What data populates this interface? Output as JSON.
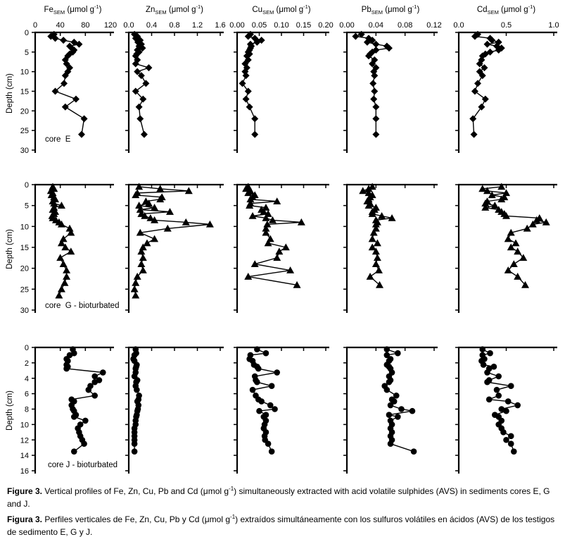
{
  "caption_en": {
    "bold": "Figure 3.",
    "pre": " Vertical profiles of Fe, Zn, Cu, Pb and Cd (μmol g",
    "sup": "-1",
    "post": ") simultaneously extracted with acid volatile sulphides (AVS) in sediments cores E, G and J."
  },
  "caption_es": {
    "bold": "Figura 3.",
    "pre": " Perfiles verticales de Fe, Zn, Cu, Pb y Cd (μmol g",
    "sup": "-1",
    "post": ") extraídos simultáneamente con los sulfuros volátiles en ácidos (AVS) de los testigos de sedimento E, G y J."
  },
  "chart_data": {
    "type": "line",
    "layout": "3 rows (cores E, G, J) x 5 columns (Fe, Zn, Cu, Pb, Cd); depth profiles, depth increases downward; only row 1 has x tick labels, only column 1 has y tick labels",
    "grid": false,
    "line_color": "#000000",
    "background": "#ffffff",
    "columns": [
      {
        "id": "Fe",
        "element": "Fe",
        "sub": "SEM",
        "mid": " (μmol g",
        "sup": "-1",
        "end": ")",
        "xlim": [
          0,
          120
        ],
        "tick_values": [
          0,
          40,
          80,
          120
        ],
        "tick_labels": [
          "0",
          "40",
          "80",
          "120"
        ]
      },
      {
        "id": "Zn",
        "element": "Zn",
        "sub": "SEM",
        "mid": " (μmol g",
        "sup": "-1",
        "end": ")",
        "xlim": [
          0,
          1.6
        ],
        "tick_values": [
          0,
          0.4,
          0.8,
          1.2,
          1.6
        ],
        "tick_labels": [
          "0.0",
          "0.4",
          "0.8",
          "1.2",
          "1.6"
        ]
      },
      {
        "id": "Cu",
        "element": "Cu",
        "sub": "SEM",
        "mid": " (μmol g",
        "sup": "-1",
        "end": ")",
        "xlim": [
          0,
          0.2
        ],
        "tick_values": [
          0,
          0.05,
          0.1,
          0.15,
          0.2
        ],
        "tick_labels": [
          "0.00",
          "0.05",
          "0.10",
          "0.15",
          "0.20"
        ]
      },
      {
        "id": "Pb",
        "element": "Pb",
        "sub": "SEM",
        "mid": " (μmol g",
        "sup": "-1",
        "end": ")",
        "xlim": [
          0,
          0.12
        ],
        "tick_values": [
          0,
          0.04,
          0.08,
          0.12
        ],
        "tick_labels": [
          "0.00",
          "0.04",
          "0.08",
          "0.12"
        ]
      },
      {
        "id": "Cd",
        "element": "Cd",
        "sub": "SEM",
        "mid": " (μmol g",
        "sup": "-1",
        "end": ")",
        "xlim": [
          0,
          1.0
        ],
        "tick_values": [
          0,
          0.5,
          1.0
        ],
        "tick_labels": [
          "0.0",
          "0.5",
          "1.0"
        ]
      }
    ],
    "rows": [
      {
        "id": "E",
        "core_label": "core  E",
        "marker": "diamond",
        "ylabel": "Depth (cm)",
        "ylim": [
          0,
          30
        ],
        "tick_values": [
          0,
          5,
          10,
          15,
          20,
          25,
          30
        ],
        "tick_labels": [
          "0",
          "5",
          "10",
          "15",
          "20",
          "25",
          "30"
        ]
      },
      {
        "id": "G",
        "core_label": "core  G - bioturbated",
        "marker": "triangle",
        "ylabel": "Depth (cm)",
        "ylim": [
          0,
          30
        ],
        "tick_values": [
          0,
          5,
          10,
          15,
          20,
          25,
          30
        ],
        "tick_labels": [
          "0",
          "5",
          "10",
          "15",
          "20",
          "25",
          "30"
        ]
      },
      {
        "id": "J",
        "core_label": "core J - bioturbated",
        "marker": "circle",
        "ylabel": "Depth (cm)",
        "ylim": [
          0,
          16
        ],
        "tick_values": [
          0,
          2,
          4,
          6,
          8,
          10,
          12,
          14,
          16
        ],
        "tick_labels": [
          "0",
          "2",
          "4",
          "6",
          "8",
          "10",
          "12",
          "14",
          "16"
        ]
      }
    ],
    "series": [
      {
        "row": 0,
        "col": 0,
        "depth": [
          0.5,
          1,
          1.5,
          2,
          2.5,
          3,
          3.5,
          4,
          4.5,
          5,
          5.5,
          6,
          7,
          8,
          9,
          10,
          11,
          13,
          15,
          17,
          19,
          22,
          26
        ],
        "values": [
          30,
          25,
          32,
          45,
          62,
          70,
          55,
          58,
          62,
          60,
          55,
          52,
          48,
          50,
          55,
          52,
          48,
          46,
          32,
          65,
          48,
          78,
          74
        ]
      },
      {
        "row": 0,
        "col": 1,
        "depth": [
          0.5,
          1,
          1.5,
          2,
          2.5,
          3,
          3.5,
          4,
          4.5,
          5,
          5.5,
          6,
          7,
          8,
          9,
          10,
          11,
          13,
          15,
          17,
          19,
          22,
          26
        ],
        "values": [
          0.1,
          0.15,
          0.12,
          0.2,
          0.16,
          0.22,
          0.18,
          0.24,
          0.15,
          0.18,
          0.14,
          0.12,
          0.15,
          0.12,
          0.35,
          0.15,
          0.22,
          0.3,
          0.12,
          0.25,
          0.18,
          0.2,
          0.27
        ]
      },
      {
        "row": 0,
        "col": 2,
        "depth": [
          0.5,
          1,
          1.5,
          2,
          2.5,
          3,
          3.5,
          4,
          4.5,
          5,
          5.5,
          6,
          7,
          8,
          9,
          10,
          11,
          13,
          15,
          17,
          19,
          22,
          26
        ],
        "values": [
          0.03,
          0.025,
          0.04,
          0.055,
          0.045,
          0.03,
          0.032,
          0.03,
          0.028,
          0.025,
          0.028,
          0.022,
          0.025,
          0.018,
          0.022,
          0.018,
          0.02,
          0.012,
          0.025,
          0.02,
          0.028,
          0.04,
          0.04
        ]
      },
      {
        "row": 0,
        "col": 3,
        "depth": [
          0.5,
          1,
          1.5,
          2,
          2.5,
          3,
          3.5,
          4,
          4.5,
          5,
          5.5,
          6,
          7,
          8,
          9,
          10,
          11,
          13,
          15,
          17,
          19,
          22,
          26
        ],
        "values": [
          0.02,
          0.012,
          0.03,
          0.035,
          0.028,
          0.04,
          0.055,
          0.058,
          0.04,
          0.035,
          0.032,
          0.03,
          0.038,
          0.035,
          0.04,
          0.037,
          0.038,
          0.036,
          0.038,
          0.037,
          0.04,
          0.04,
          0.04
        ]
      },
      {
        "row": 0,
        "col": 4,
        "depth": [
          0.5,
          1,
          1.5,
          2,
          2.5,
          3,
          3.5,
          4,
          4.5,
          5,
          5.5,
          6,
          7,
          8,
          9,
          10,
          11,
          13,
          15,
          17,
          19,
          22,
          26
        ],
        "values": [
          0.2,
          0.17,
          0.33,
          0.35,
          0.42,
          0.3,
          0.4,
          0.45,
          0.42,
          0.33,
          0.28,
          0.25,
          0.24,
          0.22,
          0.27,
          0.22,
          0.25,
          0.2,
          0.17,
          0.28,
          0.24,
          0.15,
          0.16
        ]
      },
      {
        "row": 1,
        "col": 0,
        "depth": [
          0.5,
          1,
          1.5,
          2,
          2.5,
          3,
          3.5,
          4,
          4.5,
          5,
          5.5,
          6,
          6.5,
          7,
          7.5,
          8,
          8.5,
          9,
          9.5,
          10.5,
          11.5,
          13,
          14,
          15,
          16,
          17.5,
          19,
          20.5,
          22,
          23.5,
          25,
          26.5
        ],
        "values": [
          28,
          30,
          25,
          28,
          26,
          30,
          32,
          28,
          30,
          42,
          30,
          28,
          32,
          30,
          27,
          28,
          33,
          38,
          42,
          55,
          57,
          45,
          42,
          48,
          57,
          40,
          45,
          50,
          50,
          47,
          42,
          38
        ]
      },
      {
        "row": 1,
        "col": 1,
        "depth": [
          0.5,
          1,
          1.5,
          2,
          2.5,
          3,
          3.5,
          4,
          4.5,
          5,
          5.5,
          6,
          6.5,
          7,
          7.5,
          8,
          8.5,
          9,
          9.5,
          10.5,
          11.5,
          13,
          14,
          15,
          16,
          17.5,
          19,
          20.5,
          22,
          23.5,
          25,
          26.5
        ],
        "values": [
          0.18,
          0.55,
          1.05,
          0.15,
          0.12,
          0.58,
          0.55,
          0.3,
          0.35,
          0.18,
          0.45,
          0.2,
          0.72,
          0.22,
          0.28,
          0.38,
          0.45,
          1.0,
          1.42,
          0.68,
          0.2,
          0.45,
          0.32,
          0.25,
          0.22,
          0.25,
          0.22,
          0.25,
          0.15,
          0.12,
          0.1,
          0.12
        ]
      },
      {
        "row": 1,
        "col": 2,
        "depth": [
          0.5,
          1,
          1.5,
          2,
          2.5,
          3,
          3.5,
          4,
          4.5,
          5,
          5.5,
          6,
          6.5,
          7,
          7.5,
          8,
          8.5,
          9,
          9.5,
          10.5,
          11.5,
          13,
          14,
          15,
          16,
          17.5,
          19,
          20.5,
          22,
          24
        ],
        "values": [
          0.025,
          0.02,
          0.03,
          0.025,
          0.04,
          0.035,
          0.03,
          0.09,
          0.03,
          0.028,
          0.065,
          0.055,
          0.06,
          0.07,
          0.035,
          0.065,
          0.08,
          0.145,
          0.068,
          0.065,
          0.065,
          0.075,
          0.07,
          0.11,
          0.095,
          0.09,
          0.04,
          0.12,
          0.025,
          0.135
        ]
      },
      {
        "row": 1,
        "col": 3,
        "depth": [
          0.5,
          1,
          1.5,
          2,
          2.5,
          3,
          3.5,
          4,
          4.5,
          5,
          5.5,
          6,
          6.5,
          7,
          7.5,
          8,
          8.5,
          9,
          9.5,
          10.5,
          11.5,
          13,
          14,
          15,
          16,
          17.5,
          19,
          20.5,
          22,
          24
        ],
        "values": [
          0.035,
          0.03,
          0.022,
          0.03,
          0.035,
          0.032,
          0.03,
          0.028,
          0.032,
          0.03,
          0.04,
          0.038,
          0.035,
          0.035,
          0.048,
          0.062,
          0.04,
          0.042,
          0.04,
          0.04,
          0.037,
          0.035,
          0.042,
          0.035,
          0.04,
          0.042,
          0.04,
          0.044,
          0.032,
          0.045
        ]
      },
      {
        "row": 1,
        "col": 4,
        "depth": [
          0.5,
          1,
          1.5,
          2,
          2.5,
          3,
          3.5,
          4,
          4.5,
          5,
          5.5,
          6,
          6.5,
          7,
          7.5,
          8,
          8.5,
          9,
          9.5,
          10.5,
          11.5,
          13,
          14,
          15,
          16,
          17.5,
          19,
          20.5,
          22,
          24
        ],
        "values": [
          0.45,
          0.25,
          0.3,
          0.5,
          0.35,
          0.48,
          0.45,
          0.3,
          0.28,
          0.38,
          0.28,
          0.42,
          0.45,
          0.48,
          0.5,
          0.85,
          0.82,
          0.92,
          0.78,
          0.72,
          0.55,
          0.52,
          0.6,
          0.55,
          0.62,
          0.68,
          0.58,
          0.52,
          0.62,
          0.7
        ]
      },
      {
        "row": 2,
        "col": 0,
        "depth": [
          0.25,
          0.75,
          1,
          1.5,
          1.75,
          2.25,
          2.5,
          2.75,
          3.25,
          3.75,
          4.25,
          4.5,
          5,
          5.5,
          6.25,
          6.75,
          7,
          7.5,
          8,
          8.25,
          8.75,
          9,
          9.5,
          10,
          10.5,
          11,
          11.5,
          12,
          12.5,
          13.5
        ],
        "values": [
          60,
          62,
          55,
          50,
          52,
          50,
          52,
          50,
          108,
          95,
          102,
          95,
          88,
          85,
          95,
          58,
          62,
          58,
          60,
          62,
          65,
          62,
          80,
          72,
          68,
          70,
          72,
          75,
          78,
          62
        ]
      },
      {
        "row": 2,
        "col": 1,
        "depth": [
          0.25,
          0.75,
          1,
          1.5,
          1.75,
          2.25,
          2.5,
          2.75,
          3.25,
          3.75,
          4.25,
          4.5,
          5,
          5.5,
          6.25,
          6.75,
          7,
          7.5,
          8,
          8.25,
          8.75,
          9,
          9.5,
          10,
          10.5,
          11,
          11.5,
          12,
          12.5,
          13.5
        ],
        "values": [
          0.12,
          0.13,
          0.1,
          0.08,
          0.1,
          0.14,
          0.13,
          0.12,
          0.12,
          0.1,
          0.15,
          0.13,
          0.12,
          0.14,
          0.18,
          0.17,
          0.15,
          0.17,
          0.16,
          0.15,
          0.14,
          0.13,
          0.12,
          0.12,
          0.1,
          0.1,
          0.1,
          0.1,
          0.1,
          0.1
        ]
      },
      {
        "row": 2,
        "col": 2,
        "depth": [
          0.25,
          0.75,
          1,
          1.5,
          1.75,
          2.25,
          2.5,
          2.75,
          3.25,
          3.75,
          4.25,
          4.5,
          5,
          5.5,
          6.25,
          6.75,
          7,
          7.5,
          8,
          8.25,
          8.75,
          9,
          9.5,
          10,
          10.5,
          11,
          11.5,
          12,
          12.5,
          13.5
        ],
        "values": [
          0.045,
          0.065,
          0.03,
          0.028,
          0.035,
          0.038,
          0.045,
          0.048,
          0.09,
          0.04,
          0.042,
          0.045,
          0.078,
          0.035,
          0.042,
          0.048,
          0.055,
          0.075,
          0.085,
          0.05,
          0.065,
          0.06,
          0.065,
          0.062,
          0.06,
          0.065,
          0.062,
          0.063,
          0.07,
          0.078
        ]
      },
      {
        "row": 2,
        "col": 3,
        "depth": [
          0.25,
          0.75,
          1,
          1.5,
          1.75,
          2.25,
          2.5,
          2.75,
          3.25,
          3.75,
          4.25,
          4.5,
          5,
          5.5,
          6.25,
          6.75,
          7,
          7.5,
          8,
          8.25,
          8.75,
          9,
          9.5,
          10,
          10.5,
          11,
          11.5,
          12,
          12.5,
          13.5
        ],
        "values": [
          0.055,
          0.07,
          0.055,
          0.06,
          0.058,
          0.055,
          0.058,
          0.06,
          0.062,
          0.058,
          0.06,
          0.058,
          0.052,
          0.055,
          0.068,
          0.062,
          0.065,
          0.06,
          0.075,
          0.09,
          0.058,
          0.07,
          0.06,
          0.062,
          0.06,
          0.062,
          0.06,
          0.062,
          0.06,
          0.092
        ]
      },
      {
        "row": 2,
        "col": 4,
        "depth": [
          0.25,
          0.75,
          1,
          1.5,
          1.75,
          2.25,
          2.5,
          2.75,
          3.25,
          3.75,
          4.25,
          4.5,
          5,
          5.5,
          6.25,
          6.75,
          7,
          7.5,
          8,
          8.25,
          8.75,
          9,
          9.5,
          10,
          10.5,
          11,
          11.5,
          12,
          12.5,
          13.5
        ],
        "values": [
          0.25,
          0.33,
          0.25,
          0.27,
          0.24,
          0.26,
          0.37,
          0.32,
          0.3,
          0.42,
          0.32,
          0.3,
          0.55,
          0.4,
          0.42,
          0.32,
          0.52,
          0.62,
          0.45,
          0.5,
          0.38,
          0.42,
          0.45,
          0.42,
          0.45,
          0.47,
          0.55,
          0.5,
          0.55,
          0.58
        ]
      }
    ]
  }
}
